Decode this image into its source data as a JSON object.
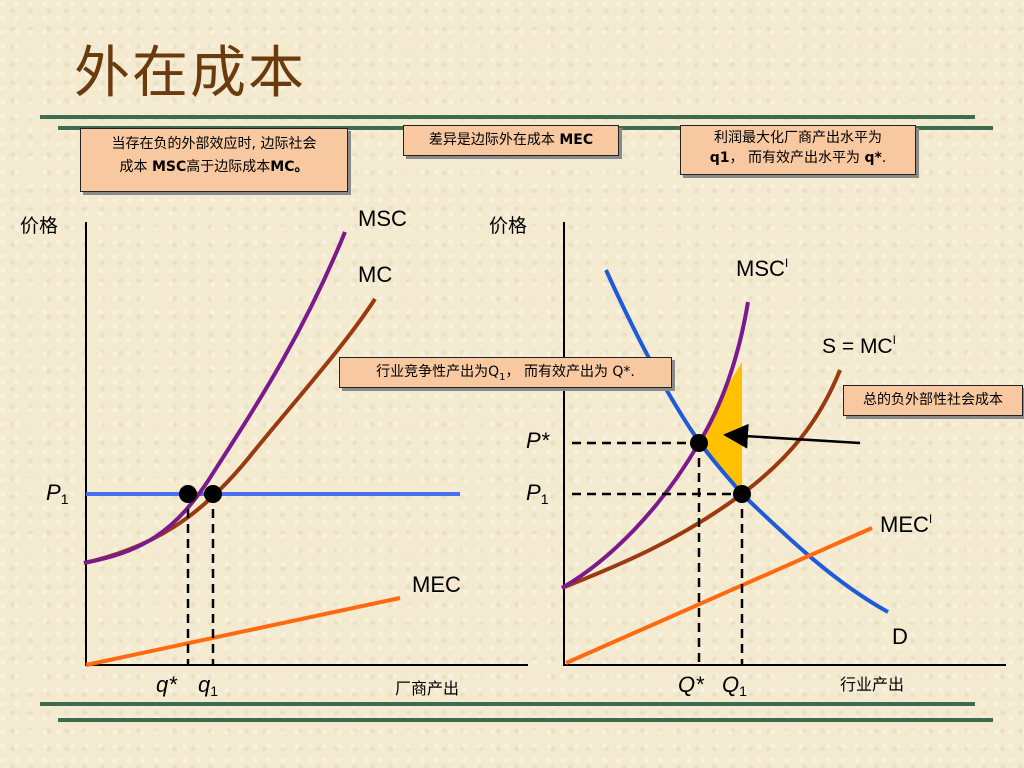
{
  "title": "外在成本",
  "notes": {
    "left_a": "当存在负的外部效应时, 边际社会",
    "left_b_prefix": "成本 ",
    "left_b_bold1": "MSC",
    "left_b_mid": "高于边际成本",
    "left_b_bold2": "MC。",
    "middle_prefix": "差异是边际外在成本 ",
    "middle_bold": "MEC",
    "right_a": "利润最大化厂商产出水平为",
    "right_b_bold1": "q1",
    "right_b_mid": "，  而有效产出水平为 ",
    "right_b_bold2": "q*",
    "right_b_end": ".",
    "center_prefix": "行业竞争性产出为Q",
    "center_sub": "1",
    "center_suffix": "，  而有效产出为 Q*.",
    "total": "总的负外部性社会成本"
  },
  "left_graph": {
    "y_label": "价格",
    "x_label": "厂商产出",
    "msc": "MSC",
    "mc": "MC",
    "mec": "MEC",
    "p1": "P",
    "p1_sub": "1",
    "q_star": "q*",
    "q1": "q",
    "q1_sub": "1"
  },
  "right_graph": {
    "y_label": "价格",
    "x_label": "行业产出",
    "msc": "MSC",
    "msc_sup": "I",
    "s_mc": "S = MC",
    "s_mc_sup": "I",
    "mec": "MEC",
    "mec_sup": "I",
    "d": "D",
    "p_star": "P*",
    "p1": "P",
    "p1_sub": "1",
    "q_star": "Q*",
    "q1": "Q",
    "q1_sub": "1"
  },
  "colors": {
    "msc": "#7a1a8c",
    "mc": "#9a3a10",
    "mec": "#ff6a10",
    "price_line": "#4a6ef0",
    "demand": "#1f5ad8",
    "area": "#ffc000",
    "note_bg": "#f8c9a0"
  }
}
